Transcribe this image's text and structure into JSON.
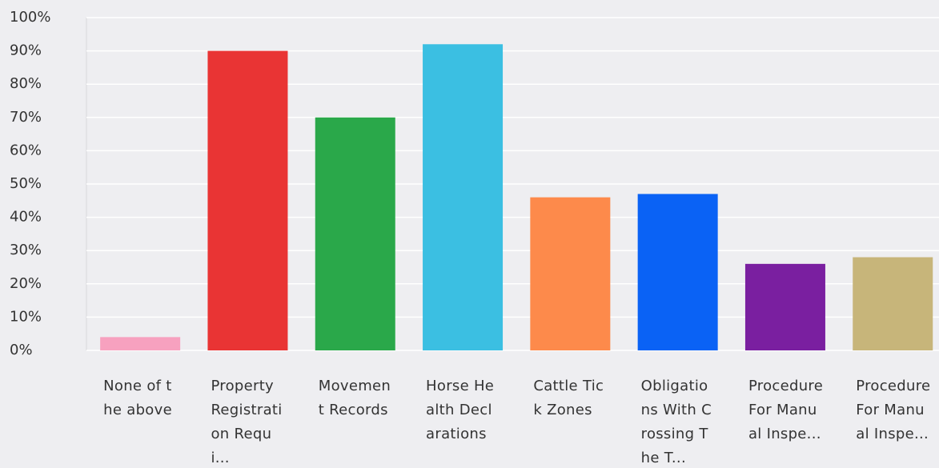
{
  "chart_data": {
    "type": "bar",
    "categories": [
      "None of the above",
      "Property Registration Requi...",
      "Movement Records",
      "Horse Health Declarations",
      "Cattle Tick Zones",
      "Obligations With Crossing The T...",
      "Procedure For Manual Inspe...",
      "Procedure For Manual Inspe..."
    ],
    "values": [
      4,
      90,
      70,
      92,
      46,
      47,
      26,
      28
    ],
    "colors": [
      "#f7a1bf",
      "#e93434",
      "#2aa84a",
      "#3bbfe2",
      "#fd8a4b",
      "#0a62f5",
      "#7a1fa0",
      "#c7b57a"
    ],
    "ylim": [
      0,
      100
    ],
    "yticks": [
      {
        "value": 0,
        "label": "0%"
      },
      {
        "value": 10,
        "label": "10%"
      },
      {
        "value": 20,
        "label": "20%"
      },
      {
        "value": 30,
        "label": "30%"
      },
      {
        "value": 40,
        "label": "40%"
      },
      {
        "value": 50,
        "label": "50%"
      },
      {
        "value": 60,
        "label": "60%"
      },
      {
        "value": 70,
        "label": "70%"
      },
      {
        "value": 80,
        "label": "80%"
      },
      {
        "value": 90,
        "label": "90%"
      },
      {
        "value": 100,
        "label": "100%"
      }
    ],
    "grid": true
  }
}
